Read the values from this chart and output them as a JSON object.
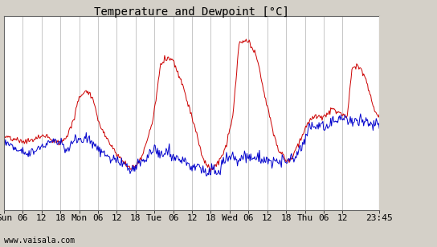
{
  "title": "Temperature and Dewpoint [°C]",
  "bg_color": "#d4d0c8",
  "plot_bg_color": "#ffffff",
  "grid_color": "#b0b0b0",
  "temp_color": "#cc0000",
  "dewp_color": "#0000cc",
  "ylim": [
    8,
    32
  ],
  "yticks": [
    8,
    10,
    12,
    14,
    16,
    18,
    20,
    22,
    24,
    26,
    28,
    30,
    32
  ],
  "xtick_labels": [
    "Sun",
    "06",
    "12",
    "18",
    "Mon",
    "06",
    "12",
    "18",
    "Tue",
    "06",
    "12",
    "18",
    "Wed",
    "06",
    "12",
    "18",
    "Thu",
    "06",
    "12",
    "23:45"
  ],
  "xtick_pos_frac": [
    0.0,
    0.0417,
    0.0833,
    0.125,
    0.1667,
    0.2083,
    0.25,
    0.2917,
    0.3333,
    0.375,
    0.4167,
    0.4583,
    0.5,
    0.5417,
    0.5833,
    0.625,
    0.6667,
    0.7083,
    0.75,
    0.9979
  ],
  "watermark": "www.vaisala.com",
  "title_fontsize": 10,
  "tick_fontsize": 8,
  "n_points": 480,
  "temp_ctrl_x": [
    0,
    10,
    20,
    30,
    40,
    50,
    60,
    70,
    80,
    90,
    96,
    104,
    110,
    116,
    120,
    128,
    134,
    140,
    148,
    156,
    162,
    168,
    176,
    182,
    190,
    200,
    210,
    216,
    220,
    228,
    234,
    240,
    246,
    252,
    258,
    264,
    270,
    278,
    285,
    292,
    300,
    308,
    314,
    320,
    326,
    332,
    338,
    344,
    350,
    358,
    362,
    368,
    374,
    380,
    386,
    390,
    396,
    402,
    408,
    414,
    420,
    426,
    432,
    438,
    444,
    450,
    456,
    462,
    468,
    474,
    479
  ],
  "temp_ctrl_y": [
    17.0,
    16.8,
    16.5,
    16.5,
    16.8,
    17.2,
    16.8,
    16.2,
    17.0,
    19.5,
    22.0,
    22.8,
    22.5,
    21.0,
    19.0,
    17.5,
    16.5,
    15.5,
    14.5,
    13.5,
    13.2,
    13.5,
    14.5,
    16.5,
    19.0,
    26.0,
    27.0,
    26.5,
    25.5,
    23.5,
    21.5,
    19.5,
    17.5,
    15.0,
    13.5,
    13.0,
    13.5,
    14.5,
    16.5,
    19.5,
    28.5,
    29.0,
    28.5,
    27.5,
    25.5,
    22.5,
    20.0,
    17.5,
    15.5,
    14.5,
    14.0,
    14.5,
    16.0,
    17.0,
    18.5,
    19.0,
    19.5,
    19.5,
    19.5,
    20.0,
    20.5,
    20.0,
    20.0,
    19.5,
    25.5,
    26.0,
    25.5,
    24.0,
    22.0,
    20.0,
    19.5
  ],
  "dewp_ctrl_x": [
    0,
    10,
    20,
    30,
    40,
    50,
    60,
    72,
    80,
    90,
    96,
    104,
    110,
    116,
    120,
    128,
    134,
    140,
    148,
    156,
    162,
    168,
    176,
    182,
    192,
    202,
    210,
    216,
    224,
    232,
    240,
    248,
    256,
    262,
    268,
    276,
    285,
    292,
    300,
    308,
    316,
    322,
    330,
    338,
    348,
    358,
    366,
    374,
    382,
    390,
    398,
    406,
    414,
    422,
    430,
    438,
    446,
    454,
    462,
    470,
    479
  ],
  "dewp_ctrl_y": [
    16.5,
    16.0,
    15.5,
    15.0,
    15.5,
    16.0,
    16.5,
    16.5,
    15.5,
    16.5,
    16.5,
    17.0,
    16.5,
    16.0,
    15.5,
    15.0,
    14.5,
    14.0,
    14.0,
    13.5,
    13.0,
    13.0,
    14.0,
    14.5,
    15.5,
    15.0,
    15.0,
    14.5,
    14.5,
    14.0,
    13.5,
    13.5,
    12.5,
    12.5,
    13.0,
    13.0,
    14.5,
    14.5,
    14.0,
    14.5,
    14.5,
    14.5,
    14.5,
    14.0,
    14.0,
    14.0,
    14.5,
    15.0,
    16.0,
    18.5,
    18.5,
    18.5,
    18.5,
    19.0,
    19.5,
    19.0,
    19.0,
    19.0,
    19.0,
    18.5,
    18.5
  ]
}
